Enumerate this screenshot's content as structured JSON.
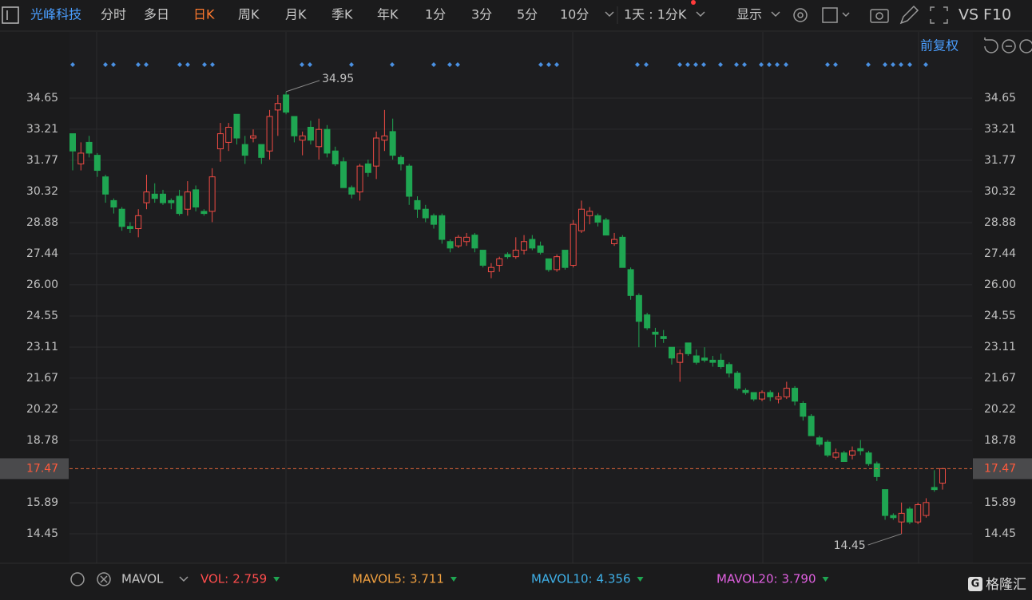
{
  "toolbar": {
    "stock": "光峰科技",
    "periods": [
      "分时",
      "多日",
      "日K",
      "周K",
      "月K",
      "季K",
      "年K",
      "1分",
      "3分",
      "5分",
      "10分"
    ],
    "active": "日K",
    "range": "1天 : 1分K",
    "display": "显示",
    "vs": "VS",
    "f10": "F10",
    "adjust": "前复权"
  },
  "chart_data": {
    "type": "candlestick",
    "up_color": "#ef4b44",
    "down_color": "#1fa652",
    "grid": true,
    "ylim": [
      13.12,
      37.72
    ],
    "yticks": [
      34.65,
      33.21,
      31.77,
      30.32,
      28.88,
      27.44,
      {
        "value": 26,
        "label": "26.00"
      },
      24.55,
      23.11,
      21.67,
      20.22,
      18.78,
      15.89,
      14.45
    ],
    "series": [
      {
        "values": [
          [
            33.0,
            33.0,
            31.3,
            32.2
          ],
          [
            31.6,
            32.6,
            31.3,
            32.1
          ],
          [
            32.6,
            32.9,
            31.9,
            32.1
          ],
          [
            32.0,
            32.1,
            31.0,
            31.3
          ],
          [
            31.0,
            31.1,
            29.8,
            30.2
          ],
          [
            29.9,
            30.0,
            29.3,
            29.6
          ],
          [
            29.5,
            29.6,
            28.5,
            28.7
          ],
          [
            28.7,
            28.9,
            28.4,
            28.6
          ],
          [
            28.6,
            29.5,
            28.2,
            29.2
          ],
          [
            29.8,
            31.1,
            29.5,
            30.3
          ],
          [
            30.2,
            30.7,
            29.8,
            30.0
          ],
          [
            30.2,
            30.4,
            29.7,
            29.8
          ],
          [
            29.9,
            30.0,
            29.5,
            29.8
          ],
          [
            30.1,
            30.4,
            29.2,
            29.3
          ],
          [
            29.5,
            30.8,
            29.2,
            30.3
          ],
          [
            30.4,
            30.6,
            29.4,
            29.6
          ],
          [
            29.4,
            29.5,
            29.2,
            29.3
          ],
          [
            29.4,
            31.4,
            28.9,
            31.0
          ],
          [
            32.3,
            33.5,
            31.7,
            33.0
          ],
          [
            32.6,
            33.5,
            32.2,
            33.3
          ],
          [
            33.9,
            33.9,
            32.5,
            32.8
          ],
          [
            32.5,
            32.9,
            31.6,
            32.0
          ],
          [
            32.8,
            33.2,
            32.6,
            32.9
          ],
          [
            32.5,
            32.5,
            31.6,
            31.9
          ],
          [
            32.2,
            34.1,
            31.8,
            33.8
          ],
          [
            34.1,
            34.8,
            32.9,
            34.4
          ],
          [
            34.8,
            34.95,
            33.9,
            34.0
          ],
          [
            33.8,
            33.8,
            32.6,
            32.9
          ],
          [
            32.7,
            33.1,
            32.0,
            32.9
          ],
          [
            33.3,
            33.6,
            32.5,
            32.7
          ],
          [
            32.4,
            33.7,
            31.8,
            33.2
          ],
          [
            33.2,
            33.4,
            31.9,
            32.1
          ],
          [
            32.2,
            32.4,
            31.5,
            31.6
          ],
          [
            31.7,
            31.9,
            30.5,
            30.5
          ],
          [
            30.5,
            30.6,
            30.0,
            30.2
          ],
          [
            30.3,
            31.6,
            29.9,
            31.5
          ],
          [
            31.6,
            31.8,
            31.0,
            31.2
          ],
          [
            31.5,
            33.1,
            30.9,
            32.8
          ],
          [
            32.7,
            34.1,
            32.2,
            32.9
          ],
          [
            33.1,
            33.7,
            31.8,
            32.0
          ],
          [
            31.9,
            32.0,
            31.3,
            31.6
          ],
          [
            31.5,
            31.6,
            29.7,
            30.1
          ],
          [
            29.9,
            30.1,
            29.1,
            29.5
          ],
          [
            29.5,
            29.7,
            28.9,
            29.1
          ],
          [
            29.2,
            29.3,
            28.6,
            28.8
          ],
          [
            29.2,
            29.3,
            27.9,
            28.1
          ],
          [
            28.0,
            28.1,
            27.5,
            27.7
          ],
          [
            27.8,
            28.3,
            27.7,
            28.2
          ],
          [
            28.0,
            28.4,
            27.8,
            28.2
          ],
          [
            28.3,
            28.4,
            27.5,
            27.7
          ],
          [
            27.6,
            27.6,
            26.8,
            26.9
          ],
          [
            26.6,
            27.0,
            26.3,
            26.8
          ],
          [
            26.9,
            27.3,
            26.6,
            27.2
          ],
          [
            27.4,
            27.5,
            27.2,
            27.3
          ],
          [
            27.3,
            28.2,
            27.2,
            27.6
          ],
          [
            27.6,
            28.3,
            27.4,
            28.0
          ],
          [
            28.1,
            28.3,
            27.6,
            27.7
          ],
          [
            27.8,
            28.0,
            27.4,
            27.5
          ],
          [
            27.2,
            27.2,
            26.6,
            26.7
          ],
          [
            26.7,
            27.4,
            26.6,
            27.3
          ],
          [
            27.6,
            27.6,
            26.7,
            26.8
          ],
          [
            26.9,
            29.0,
            26.8,
            28.8
          ],
          [
            28.5,
            29.9,
            28.4,
            29.5
          ],
          [
            29.2,
            29.6,
            28.8,
            29.4
          ],
          [
            29.2,
            29.3,
            28.7,
            28.9
          ],
          [
            29.0,
            29.1,
            28.3,
            28.3
          ],
          [
            27.9,
            28.4,
            27.8,
            28.1
          ],
          [
            28.2,
            28.3,
            26.8,
            26.8
          ],
          [
            26.7,
            26.8,
            25.3,
            25.5
          ],
          [
            25.5,
            25.6,
            23.1,
            24.3
          ],
          [
            24.6,
            24.7,
            23.9,
            24.0
          ],
          [
            23.8,
            24.0,
            23.1,
            23.7
          ],
          [
            23.6,
            23.9,
            23.3,
            23.5
          ],
          [
            23.1,
            23.1,
            22.3,
            22.6
          ],
          [
            22.4,
            23.0,
            21.5,
            22.8
          ],
          [
            23.3,
            23.3,
            22.7,
            22.8
          ],
          [
            22.7,
            23.0,
            22.3,
            22.4
          ],
          [
            22.6,
            23.1,
            22.4,
            22.5
          ],
          [
            22.5,
            22.7,
            22.2,
            22.4
          ],
          [
            22.5,
            22.8,
            22.1,
            22.2
          ],
          [
            22.3,
            22.4,
            21.7,
            21.9
          ],
          [
            21.9,
            22.0,
            21.1,
            21.2
          ],
          [
            21.1,
            21.2,
            20.9,
            21.0
          ],
          [
            21.0,
            21.0,
            20.6,
            20.7
          ],
          [
            20.7,
            21.1,
            20.6,
            21.0
          ],
          [
            21.0,
            21.1,
            20.6,
            20.8
          ],
          [
            20.7,
            21.0,
            20.5,
            20.8
          ],
          [
            20.8,
            21.5,
            20.7,
            21.2
          ],
          [
            21.2,
            21.3,
            20.4,
            20.6
          ],
          [
            20.5,
            20.6,
            19.7,
            19.9
          ],
          [
            19.9,
            20.0,
            19.0,
            19.0
          ],
          [
            18.9,
            19.0,
            18.5,
            18.6
          ],
          [
            18.7,
            18.8,
            18.0,
            18.1
          ],
          [
            18.0,
            18.4,
            17.9,
            18.2
          ],
          [
            18.2,
            18.3,
            17.8,
            17.8
          ],
          [
            18.1,
            18.5,
            17.9,
            18.3
          ],
          [
            18.4,
            18.8,
            18.1,
            18.3
          ],
          [
            18.2,
            18.3,
            17.6,
            17.7
          ],
          [
            17.7,
            17.8,
            16.9,
            17.1
          ],
          [
            16.5,
            16.5,
            15.1,
            15.3
          ],
          [
            15.3,
            15.4,
            15.1,
            15.2
          ],
          [
            15.0,
            15.9,
            14.45,
            15.4
          ],
          [
            15.6,
            15.7,
            14.9,
            15.0
          ],
          [
            15.0,
            15.9,
            14.9,
            15.8
          ],
          [
            15.3,
            16.1,
            15.2,
            15.9
          ],
          [
            16.6,
            17.4,
            16.4,
            16.5
          ],
          [
            16.8,
            17.5,
            16.5,
            17.47
          ]
        ]
      }
    ]
  },
  "indicator": {
    "name": "MAVOL",
    "items": [
      {
        "label": "VOL:",
        "value": "2.759",
        "color": "#ff4d4d"
      },
      {
        "label": "MAVOL5:",
        "value": "3.711",
        "color": "#f0a040"
      },
      {
        "label": "MAVOL10:",
        "value": "4.356",
        "color": "#3fb0e8"
      },
      {
        "label": "MAVOL20:",
        "value": "3.790",
        "color": "#e060e0"
      }
    ]
  },
  "brand": "格隆汇"
}
